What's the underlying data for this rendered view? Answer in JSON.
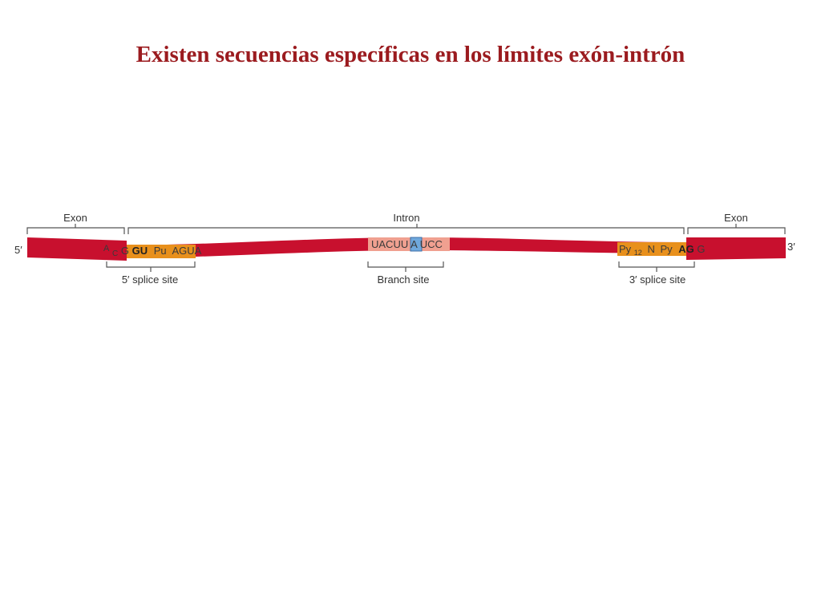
{
  "title": "Existen secuencias específicas en los límites exón-intrón",
  "colors": {
    "title": "#9b1b1f",
    "rna_strand": "#c8102e",
    "splice_site_box": "#e8901c",
    "branch_site_box": "#f0a090",
    "branch_a_box": "#6fa8dc",
    "text": "#333333"
  },
  "diagram": {
    "end_5": "5′",
    "end_3": "3′",
    "regions": {
      "exon_left": "Exon",
      "intron": "Intron",
      "exon_right": "Exon"
    },
    "sites": {
      "splice_5": "5′ splice site",
      "branch": "Branch site",
      "splice_3": "3′ splice site"
    },
    "sequences": {
      "splice_5": {
        "prefix_a": "A",
        "prefix_c": "C",
        "g": "G",
        "gu": "GU",
        "pu": "Pu",
        "agua": "AGUA"
      },
      "branch": {
        "left": "UACUU",
        "a": "A",
        "right": "UCC"
      },
      "splice_3": {
        "py": "Py",
        "sub": "12",
        "n": "N",
        "py2": "Py",
        "ag": "AG",
        "g": "G"
      }
    }
  }
}
